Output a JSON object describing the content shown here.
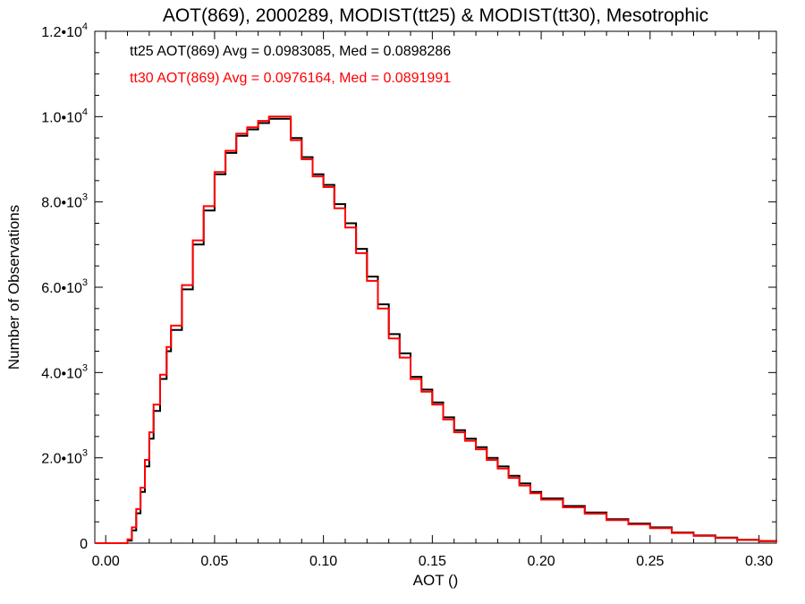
{
  "chart_data": {
    "type": "line",
    "title": "AOT(869), 2000289, MODIST(tt25) & MODIST(tt30), Mesotrophic",
    "xlabel": "AOT ()",
    "ylabel": "Number of Observations",
    "xlim": [
      -0.005,
      0.308
    ],
    "ylim": [
      0,
      12000
    ],
    "x_ticks": [
      0.0,
      0.05,
      0.1,
      0.15,
      0.2,
      0.25,
      0.3
    ],
    "x_tick_labels": [
      "0.00",
      "0.05",
      "0.10",
      "0.15",
      "0.20",
      "0.25",
      "0.30"
    ],
    "y_ticks": [
      {
        "value": 0,
        "mantissa": "0",
        "exponent": ""
      },
      {
        "value": 2000,
        "mantissa": "2.0•10",
        "exponent": "3"
      },
      {
        "value": 4000,
        "mantissa": "4.0•10",
        "exponent": "3"
      },
      {
        "value": 6000,
        "mantissa": "6.0•10",
        "exponent": "3"
      },
      {
        "value": 8000,
        "mantissa": "8.0•10",
        "exponent": "3"
      },
      {
        "value": 10000,
        "mantissa": "1.0•10",
        "exponent": "4"
      },
      {
        "value": 12000,
        "mantissa": "1.2•10",
        "exponent": "4"
      }
    ],
    "annotations": [
      {
        "text": "tt25 AOT(869) Avg = 0.0983085, Med = 0.0898286",
        "color": "#000000"
      },
      {
        "text": "tt30 AOT(869) Avg = 0.0976164, Med = 0.0891991",
        "color": "#ff0000"
      }
    ],
    "grid": false,
    "legend": "none",
    "step": "histogram",
    "series": [
      {
        "color": "#000000",
        "x": [
          -0.005,
          0.0,
          0.005,
          0.01,
          0.012,
          0.014,
          0.016,
          0.018,
          0.02,
          0.022,
          0.025,
          0.028,
          0.03,
          0.035,
          0.04,
          0.045,
          0.05,
          0.055,
          0.06,
          0.065,
          0.07,
          0.075,
          0.08,
          0.085,
          0.09,
          0.095,
          0.1,
          0.105,
          0.11,
          0.115,
          0.12,
          0.125,
          0.13,
          0.135,
          0.14,
          0.145,
          0.15,
          0.155,
          0.16,
          0.165,
          0.17,
          0.175,
          0.18,
          0.185,
          0.19,
          0.195,
          0.2,
          0.21,
          0.22,
          0.23,
          0.24,
          0.25,
          0.26,
          0.27,
          0.28,
          0.29,
          0.3,
          0.308
        ],
        "y": [
          0,
          0,
          0,
          60,
          300,
          700,
          1200,
          1800,
          2450,
          3100,
          3850,
          4500,
          5000,
          5950,
          7000,
          7800,
          8650,
          9150,
          9550,
          9700,
          9850,
          9950,
          9950,
          9500,
          9050,
          8650,
          8400,
          7950,
          7500,
          6900,
          6250,
          5600,
          4900,
          4450,
          3900,
          3600,
          3300,
          2950,
          2650,
          2450,
          2250,
          2000,
          1800,
          1580,
          1400,
          1200,
          1050,
          870,
          720,
          560,
          460,
          370,
          250,
          180,
          130,
          80,
          50,
          20
        ]
      },
      {
        "color": "#ff0000",
        "x": [
          -0.005,
          0.0,
          0.005,
          0.01,
          0.012,
          0.014,
          0.016,
          0.018,
          0.02,
          0.022,
          0.025,
          0.028,
          0.03,
          0.035,
          0.04,
          0.045,
          0.05,
          0.055,
          0.06,
          0.065,
          0.07,
          0.075,
          0.08,
          0.085,
          0.09,
          0.095,
          0.1,
          0.105,
          0.11,
          0.115,
          0.12,
          0.125,
          0.13,
          0.135,
          0.14,
          0.145,
          0.15,
          0.155,
          0.16,
          0.165,
          0.17,
          0.175,
          0.18,
          0.185,
          0.19,
          0.195,
          0.2,
          0.21,
          0.22,
          0.23,
          0.24,
          0.25,
          0.26,
          0.27,
          0.28,
          0.29,
          0.3,
          0.308
        ],
        "y": [
          0,
          0,
          0,
          90,
          370,
          800,
          1300,
          1950,
          2600,
          3250,
          3950,
          4600,
          5100,
          6050,
          7100,
          7900,
          8700,
          9200,
          9600,
          9750,
          9900,
          10000,
          10000,
          9450,
          9000,
          8600,
          8350,
          7850,
          7400,
          6800,
          6150,
          5500,
          4800,
          4350,
          3850,
          3550,
          3250,
          2900,
          2600,
          2400,
          2200,
          1950,
          1750,
          1530,
          1350,
          1170,
          1020,
          840,
          690,
          540,
          440,
          350,
          240,
          170,
          120,
          75,
          45,
          18
        ]
      }
    ]
  }
}
